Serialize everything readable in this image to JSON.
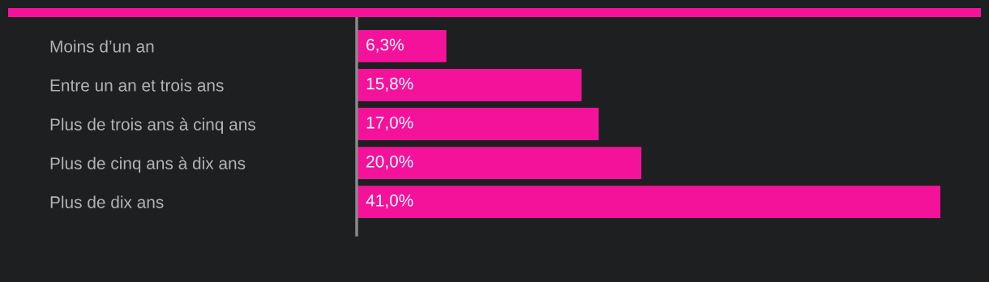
{
  "chart_data": {
    "type": "bar",
    "orientation": "horizontal",
    "categories": [
      "Moins d’un an",
      "Entre un an et trois ans",
      "Plus de trois ans à cinq ans",
      "Plus de cinq ans à dix ans",
      "Plus de dix ans"
    ],
    "values": [
      6.3,
      15.8,
      17.0,
      20.0,
      41.0
    ],
    "value_labels": [
      "6,3%",
      "15,8%",
      "17,0%",
      "20,0%",
      "41,0%"
    ],
    "color": "#f5129b",
    "grid": false,
    "legend": false
  }
}
